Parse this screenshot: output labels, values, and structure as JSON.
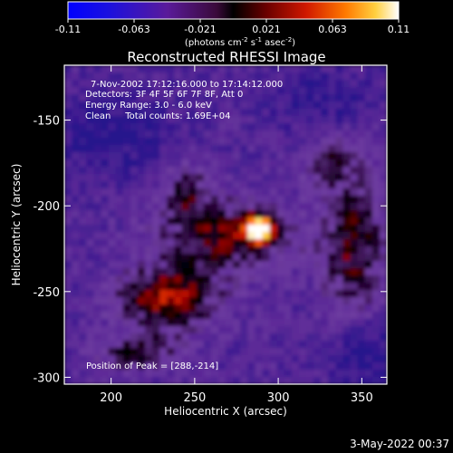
{
  "chart_data": {
    "type": "heatmap",
    "title": "Reconstructed RHESSI Image",
    "xlabel": "Heliocentric X (arcsec)",
    "ylabel": "Heliocentric Y (arcsec)",
    "xlim": [
      172,
      365
    ],
    "ylim": [
      -304,
      -118
    ],
    "xticks": [
      200,
      250,
      300,
      350
    ],
    "yticks": [
      -150,
      -200,
      -250,
      -300
    ],
    "colorbar": {
      "ticks": [
        "-0.11",
        "-0.063",
        "-0.021",
        "0.021",
        "0.063",
        "0.11"
      ],
      "unit_prefix": "(photons cm",
      "unit_exp1": "-2",
      "unit_mid": " s",
      "unit_exp2": "-1",
      "unit_mid2": " asec",
      "unit_exp3": "-2",
      "unit_suffix": ")",
      "range": [
        -0.11,
        0.11
      ]
    },
    "annotations": [
      "7-Nov-2002 17:12:16.000 to 17:14:12.000",
      "Detectors: 3F 4F 5F 6F 7F 8F, Att 0",
      "Energy Range: 3.0 - 6.0 keV",
      "Clean     Total counts: 1.69E+04"
    ],
    "peak_label": "Position of Peak = [288,-214]",
    "peak": [
      288,
      -214
    ],
    "timestamp": "3-May-2022 00:37"
  }
}
